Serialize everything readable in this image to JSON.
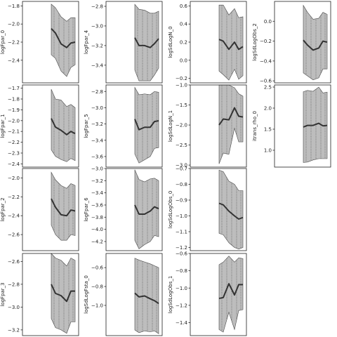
{
  "chart_data": [
    {
      "type": "line",
      "ylabel": "logFpar_0",
      "ylim": [
        -2.65,
        -1.75
      ],
      "yticks": [
        -2.4,
        -2.2,
        -2.0,
        -1.8
      ],
      "series": [
        {
          "values": [
            -2.05,
            -2.1,
            -2.22,
            -2.26,
            -2.21,
            -2.2
          ],
          "lower": [
            -2.34,
            -2.38,
            -2.52,
            -2.58,
            -2.48,
            -2.45
          ],
          "upper": [
            -1.78,
            -1.82,
            -1.92,
            -1.97,
            -1.93,
            -1.93
          ]
        }
      ]
    },
    {
      "type": "line",
      "ylabel": "logFpar_1",
      "ylim": [
        -2.43,
        -1.67
      ],
      "yticks": [
        -2.4,
        -2.3,
        -2.2,
        -2.1,
        -2.0,
        -1.9,
        -1.8,
        -1.7
      ],
      "series": [
        {
          "values": [
            -1.98,
            -2.06,
            -2.09,
            -2.13,
            -2.1,
            -2.12
          ],
          "lower": [
            -2.27,
            -2.33,
            -2.36,
            -2.38,
            -2.35,
            -2.37
          ],
          "upper": [
            -1.71,
            -1.8,
            -1.81,
            -1.87,
            -1.85,
            -1.88
          ]
        }
      ]
    },
    {
      "type": "line",
      "ylabel": "logFpar_2",
      "ylim": [
        -2.77,
        -1.9
      ],
      "yticks": [
        -2.6,
        -2.4,
        -2.2,
        -2.0
      ],
      "series": [
        {
          "values": [
            -2.22,
            -2.31,
            -2.39,
            -2.4,
            -2.34,
            -2.35
          ],
          "lower": [
            -2.5,
            -2.6,
            -2.66,
            -2.66,
            -2.6,
            -2.61
          ],
          "upper": [
            -1.94,
            -2.02,
            -2.08,
            -2.11,
            -2.06,
            -2.08
          ]
        }
      ]
    },
    {
      "type": "line",
      "ylabel": "logFpar_3",
      "ylim": [
        -3.25,
        -2.53
      ],
      "yticks": [
        -3.2,
        -3.0,
        -2.8,
        -2.6
      ],
      "series": [
        {
          "values": [
            -2.8,
            -2.88,
            -2.9,
            -2.95,
            -2.86,
            -2.86
          ],
          "lower": [
            -3.1,
            -3.18,
            -3.2,
            -3.23,
            -3.13,
            -3.13
          ],
          "upper": [
            -2.53,
            -2.57,
            -2.59,
            -2.64,
            -2.57,
            -2.59
          ]
        }
      ]
    },
    {
      "type": "line",
      "ylabel": "logFpar_4",
      "ylim": [
        -3.58,
        -2.75
      ],
      "yticks": [
        -3.4,
        -3.2,
        -3.0,
        -2.8
      ],
      "series": [
        {
          "values": [
            -3.12,
            -3.2,
            -3.2,
            -3.22,
            -3.18,
            -3.13
          ],
          "lower": [
            -3.45,
            -3.56,
            -3.56,
            -3.56,
            -3.5,
            -3.43
          ],
          "upper": [
            -2.78,
            -2.83,
            -2.84,
            -2.87,
            -2.87,
            -2.85
          ]
        }
      ]
    },
    {
      "type": "line",
      "ylabel": "logFpar_5",
      "ylim": [
        -3.73,
        -2.72
      ],
      "yticks": [
        -3.6,
        -3.4,
        -3.2,
        -3.0,
        -2.8
      ],
      "series": [
        {
          "values": [
            -3.14,
            -3.27,
            -3.24,
            -3.24,
            -3.17,
            -3.16
          ],
          "lower": [
            -3.57,
            -3.68,
            -3.64,
            -3.6,
            -3.5,
            -3.49
          ],
          "upper": [
            -2.75,
            -2.84,
            -2.83,
            -2.84,
            -2.8,
            -2.81
          ]
        }
      ]
    },
    {
      "type": "line",
      "ylabel": "logFpar_6",
      "ylim": [
        -4.35,
        -3.0
      ],
      "yticks": [
        -4.2,
        -4.0,
        -3.8,
        -3.6,
        -3.4,
        -3.2,
        -3.0
      ],
      "series": [
        {
          "values": [
            -3.6,
            -3.75,
            -3.75,
            -3.7,
            -3.63,
            -3.66
          ],
          "lower": [
            -4.18,
            -4.32,
            -4.25,
            -4.2,
            -4.1,
            -4.12
          ],
          "upper": [
            -3.02,
            -3.18,
            -3.22,
            -3.17,
            -3.16,
            -3.2
          ]
        }
      ]
    },
    {
      "type": "line",
      "ylabel": "logSdLogFsta_0",
      "ylim": [
        -1.32,
        -0.45
      ],
      "yticks": [
        -1.0,
        -0.8,
        -0.6
      ],
      "series": [
        {
          "values": [
            -0.87,
            -0.91,
            -0.9,
            -0.93,
            -0.95,
            -0.98
          ],
          "lower": [
            -1.26,
            -1.29,
            -1.27,
            -1.28,
            -1.27,
            -1.3
          ],
          "upper": [
            -0.5,
            -0.52,
            -0.54,
            -0.56,
            -0.58,
            -0.6
          ]
        }
      ]
    },
    {
      "type": "line",
      "ylabel": "logSdLogN_0",
      "ylim": [
        -0.25,
        0.65
      ],
      "yticks": [
        -0.2,
        0.0,
        0.2,
        0.4,
        0.6
      ],
      "series": [
        {
          "values": [
            0.23,
            0.21,
            0.12,
            0.2,
            0.12,
            0.15
          ],
          "lower": [
            -0.12,
            -0.16,
            -0.22,
            -0.1,
            -0.21,
            -0.17
          ],
          "upper": [
            0.61,
            0.61,
            0.5,
            0.57,
            0.47,
            0.48
          ]
        }
      ]
    },
    {
      "type": "line",
      "ylabel": "logSdLogN_1",
      "ylim": [
        -3.05,
        -1.0
      ],
      "yticks": [
        -3.0,
        -2.5,
        -2.0,
        -1.5,
        -1.0
      ],
      "series": [
        {
          "values": [
            -2.0,
            -1.85,
            -1.87,
            -1.57,
            -1.78,
            -1.8
          ],
          "lower": [
            -2.97,
            -2.7,
            -2.73,
            -2.08,
            -2.42,
            -2.42
          ],
          "upper": [
            -1.0,
            -1.0,
            -1.0,
            -1.07,
            -1.22,
            -1.28
          ]
        }
      ]
    },
    {
      "type": "line",
      "ylabel": "logSdLogObs_0",
      "ylim": [
        -1.22,
        -0.7
      ],
      "yticks": [
        -1.2,
        -1.1,
        -1.0,
        -0.9,
        -0.8,
        -0.7
      ],
      "series": [
        {
          "values": [
            -0.92,
            -0.93,
            -0.97,
            -1.0,
            -1.02,
            -1.01
          ],
          "lower": [
            -1.11,
            -1.12,
            -1.17,
            -1.2,
            -1.21,
            -1.2
          ],
          "upper": [
            -0.71,
            -0.72,
            -0.78,
            -0.8,
            -0.84,
            -0.84
          ]
        }
      ]
    },
    {
      "type": "line",
      "ylabel": "logSdLogObs_1",
      "ylim": [
        -1.55,
        -0.6
      ],
      "yticks": [
        -1.4,
        -1.2,
        -1.0,
        -0.8,
        -0.6
      ],
      "series": [
        {
          "values": [
            -1.12,
            -1.11,
            -0.95,
            -1.08,
            -0.96,
            -0.96
          ],
          "lower": [
            -1.48,
            -1.51,
            -1.28,
            -1.48,
            -1.26,
            -1.25
          ],
          "upper": [
            -0.73,
            -0.7,
            -0.63,
            -0.7,
            -0.65,
            -0.66
          ]
        }
      ]
    },
    {
      "type": "line",
      "ylabel": "logSdLogObs_2",
      "ylim": [
        -0.62,
        0.2
      ],
      "yticks": [
        -0.6,
        -0.4,
        -0.2,
        0.0
      ],
      "series": [
        {
          "values": [
            -0.19,
            -0.24,
            -0.29,
            -0.27,
            -0.2,
            -0.21
          ],
          "lower": [
            -0.52,
            -0.55,
            -0.59,
            -0.57,
            -0.48,
            -0.48
          ],
          "upper": [
            0.16,
            0.09,
            0.02,
            0.03,
            0.09,
            0.07
          ]
        }
      ]
    },
    {
      "type": "line",
      "ylabel": "itrans_rho_0",
      "ylim": [
        0.6,
        2.55
      ],
      "yticks": [
        1.0,
        1.5,
        2.0,
        2.5
      ],
      "series": [
        {
          "values": [
            1.55,
            1.59,
            1.59,
            1.64,
            1.58,
            1.59
          ],
          "lower": [
            0.71,
            0.72,
            0.77,
            0.8,
            0.8,
            0.8
          ],
          "upper": [
            2.39,
            2.42,
            2.4,
            2.5,
            2.36,
            2.38
          ]
        }
      ]
    }
  ]
}
